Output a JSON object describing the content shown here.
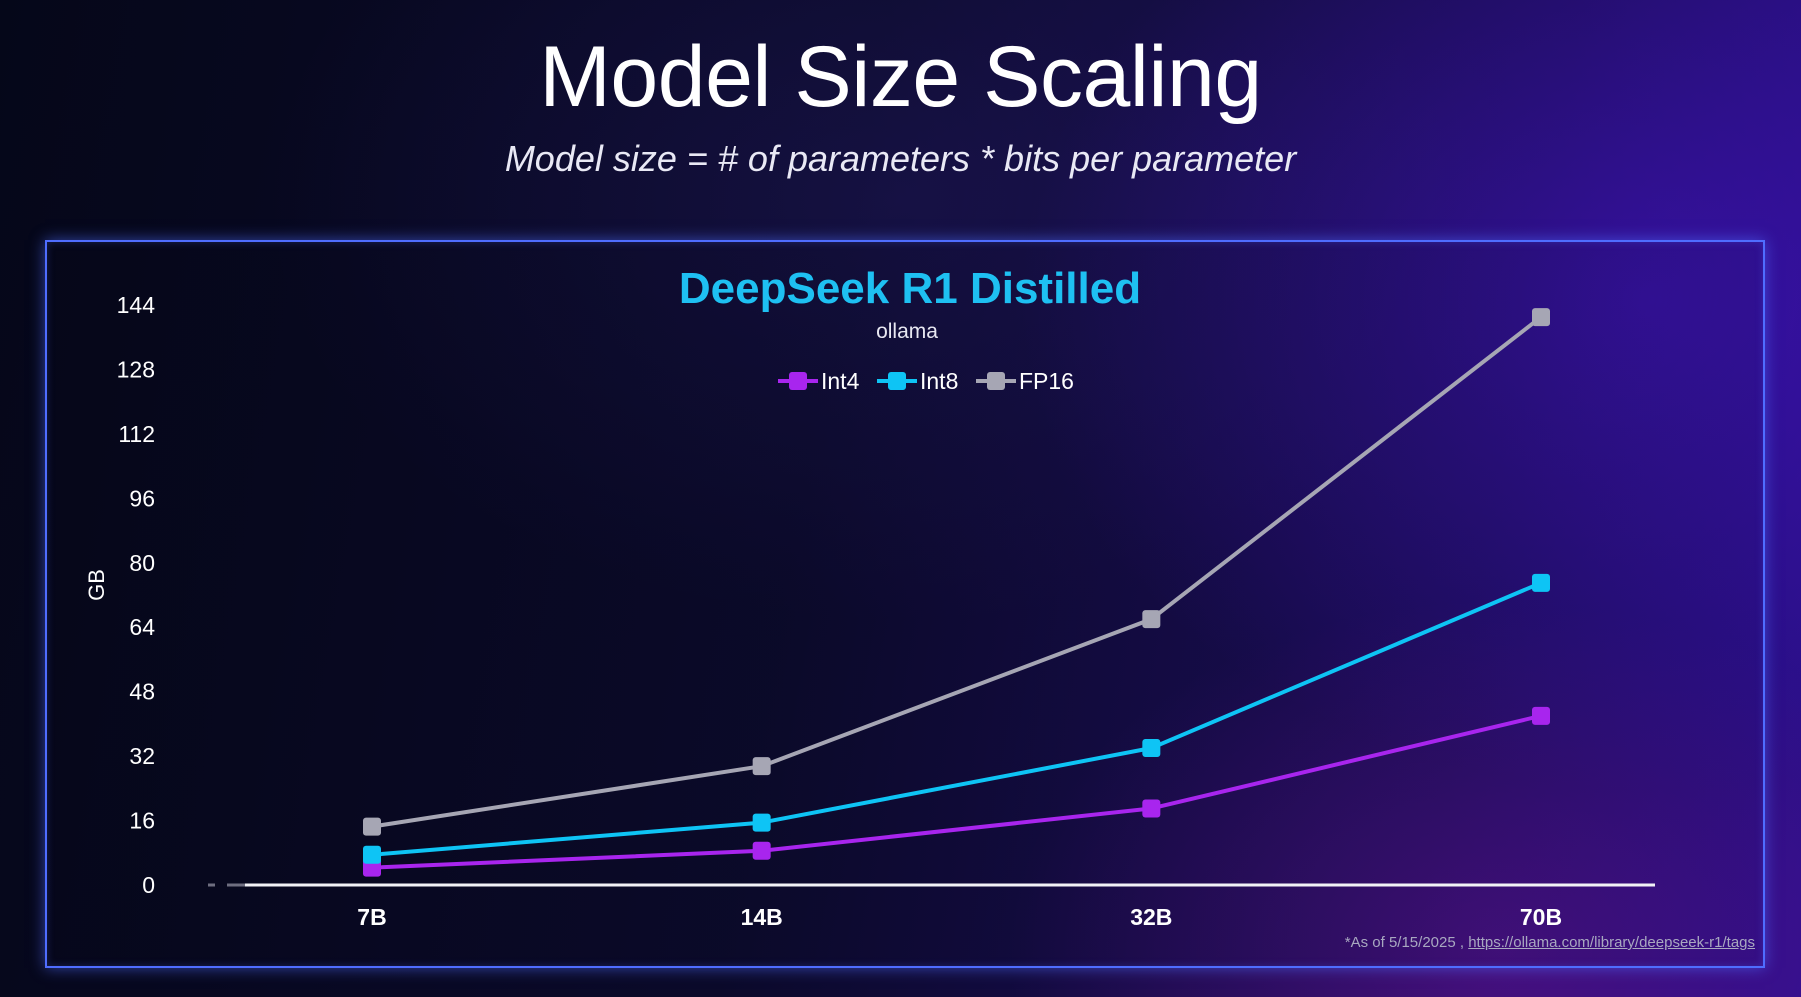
{
  "slide": {
    "title": "Model Size Scaling",
    "subtitle": "Model size = # of parameters * bits per parameter",
    "footnote_prefix": "*As of 5/15/2025 ,",
    "footnote_link": "https://ollama.com/library/deepseek-r1/tags"
  },
  "colors": {
    "int4": "#a825ee",
    "int8": "#0ec4f5",
    "fp16": "#a6a6b4",
    "chart_title": "#1ec0f2",
    "frame": "#4f6dff"
  },
  "chart_data": {
    "type": "line",
    "title": "DeepSeek R1 Distilled",
    "subtitle": "ollama",
    "xlabel": "",
    "ylabel": "GB",
    "categories": [
      "7B",
      "14B",
      "32B",
      "70B"
    ],
    "ylim": [
      0,
      144
    ],
    "yticks": [
      0,
      16,
      32,
      48,
      64,
      80,
      96,
      112,
      128,
      144
    ],
    "grid": false,
    "legend": "top-center",
    "series": [
      {
        "name": "Int4",
        "values": [
          4.3,
          8.5,
          19,
          42
        ],
        "color": "#a825ee"
      },
      {
        "name": "Int8",
        "values": [
          7.5,
          15.5,
          34,
          75
        ],
        "color": "#0ec4f5"
      },
      {
        "name": "FP16",
        "values": [
          14.5,
          29.5,
          66,
          141
        ],
        "color": "#a6a6b4"
      }
    ]
  }
}
